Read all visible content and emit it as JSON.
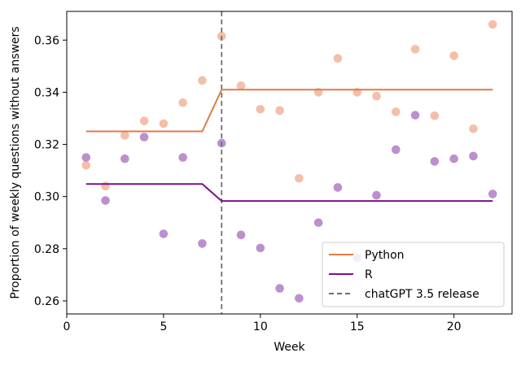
{
  "chart_data": {
    "type": "scatter",
    "title": "",
    "xlabel": "Week",
    "ylabel": "Proportion of weekly questions without answers",
    "xlim": [
      0,
      23
    ],
    "ylim": [
      0.255,
      0.371
    ],
    "xticks": [
      0,
      5,
      10,
      15,
      20
    ],
    "xtick_labels": [
      "0",
      "5",
      "10",
      "15",
      "20"
    ],
    "yticks": [
      0.26,
      0.28,
      0.3,
      0.32,
      0.34,
      0.36
    ],
    "ytick_labels": [
      "0.26",
      "0.28",
      "0.30",
      "0.32",
      "0.34",
      "0.36"
    ],
    "grid": false,
    "legend_position": "bottom-right",
    "vline": {
      "x": 8,
      "label": "chatGPT 3.5 release",
      "color": "#707070"
    },
    "series": [
      {
        "name": "Python",
        "color": "#e07b45",
        "point_color": "#f2b49a",
        "x": [
          1,
          2,
          3,
          4,
          5,
          6,
          7,
          8,
          9,
          10,
          11,
          12,
          13,
          14,
          15,
          16,
          17,
          18,
          19,
          20,
          21,
          22
        ],
        "points": [
          0.312,
          0.304,
          0.3235,
          0.329,
          0.328,
          0.336,
          0.3445,
          0.3615,
          0.3425,
          0.3335,
          0.333,
          0.307,
          0.34,
          0.353,
          0.34,
          0.3385,
          0.3325,
          0.3565,
          0.331,
          0.354,
          0.326,
          0.366
        ],
        "fit": [
          0.325,
          0.325,
          0.325,
          0.325,
          0.325,
          0.325,
          0.325,
          0.341,
          0.341,
          0.341,
          0.341,
          0.341,
          0.341,
          0.341,
          0.341,
          0.341,
          0.341,
          0.341,
          0.341,
          0.341,
          0.341,
          0.341
        ]
      },
      {
        "name": "R",
        "color": "#7b118a",
        "point_color": "#b07cc6",
        "x": [
          1,
          2,
          3,
          4,
          5,
          6,
          7,
          8,
          9,
          10,
          11,
          12,
          13,
          14,
          15,
          16,
          17,
          18,
          19,
          20,
          21,
          22
        ],
        "points": [
          0.315,
          0.2985,
          0.3145,
          0.3228,
          0.2857,
          0.315,
          0.282,
          0.3205,
          0.2853,
          0.2803,
          0.2648,
          0.261,
          0.29,
          0.3035,
          0.2765,
          0.3005,
          0.318,
          0.3312,
          0.3135,
          0.3145,
          0.3155,
          0.301
        ],
        "fit": [
          0.3048,
          0.3048,
          0.3048,
          0.3048,
          0.3048,
          0.3048,
          0.3048,
          0.2983,
          0.2983,
          0.2983,
          0.2983,
          0.2983,
          0.2983,
          0.2983,
          0.2983,
          0.2983,
          0.2983,
          0.2983,
          0.2983,
          0.2983,
          0.2983,
          0.2983
        ]
      }
    ]
  }
}
